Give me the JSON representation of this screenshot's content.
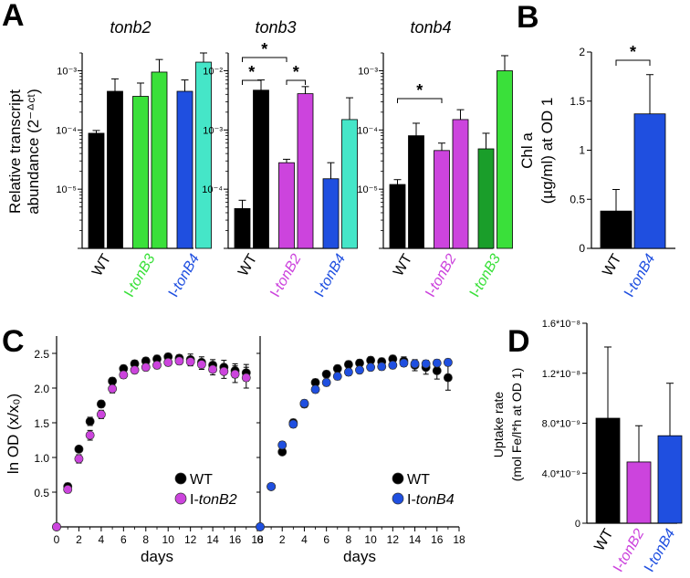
{
  "colors": {
    "WT": "#000000",
    "tonB2": "#cc44dd",
    "tonB3": "#3ae03a",
    "tonB3_dark": "#1a9e2a",
    "tonB4": "#1f4fe0",
    "teal": "#45e6c8"
  },
  "chart_data": [
    {
      "panel": "A",
      "type": "bar",
      "title": "tonb2",
      "yscale": "log",
      "ylim": [
        1e-06,
        0.002
      ],
      "yticks": [
        "10⁻³",
        "10⁻⁴",
        "10⁻⁵"
      ],
      "ylabel": "Relative transcript abundance (2⁻ᐞᶜᵗ)",
      "categories": [
        {
          "label": "WT",
          "color_key": "WT",
          "italic_prefix": "",
          "italic": ""
        },
        {
          "label": "I-tonB3",
          "prefix": "I-",
          "italic": "tonB3",
          "color_key": "tonB3"
        },
        {
          "label": "I-tonB4",
          "prefix": "I-",
          "italic": "tonB4",
          "color_key": "tonB4"
        }
      ],
      "bars": [
        {
          "value": 8.8e-05,
          "err": 1e-05,
          "color_key": "WT"
        },
        {
          "value": 0.00045,
          "err": 0.00028,
          "color_key": "WT"
        },
        {
          "value": 0.00037,
          "err": 0.00025,
          "color_key": "tonB3"
        },
        {
          "value": 0.00095,
          "err": 0.0006,
          "color_key": "tonB3"
        },
        {
          "value": 0.00045,
          "err": 0.00025,
          "color_key": "tonB4"
        },
        {
          "value": 0.0014,
          "err": 0.0006,
          "color_key": "teal"
        }
      ],
      "significance": []
    },
    {
      "panel": "A",
      "type": "bar",
      "title": "tonb3",
      "yscale": "log",
      "ylim": [
        1e-05,
        0.02
      ],
      "yticks": [
        "10⁻²",
        "10⁻³",
        "10⁻⁴"
      ],
      "categories": [
        {
          "label": "WT",
          "color_key": "WT"
        },
        {
          "label": "I-tonB2",
          "prefix": "I-",
          "italic": "tonB2",
          "color_key": "tonB2"
        },
        {
          "label": "I-tonB4",
          "prefix": "I-",
          "italic": "tonB4",
          "color_key": "tonB4"
        }
      ],
      "bars": [
        {
          "value": 4.7e-05,
          "err": 1.8e-05,
          "color_key": "WT"
        },
        {
          "value": 0.0047,
          "err": 0.0023,
          "color_key": "WT"
        },
        {
          "value": 0.00028,
          "err": 4e-05,
          "color_key": "tonB2"
        },
        {
          "value": 0.0041,
          "err": 0.0013,
          "color_key": "tonB2"
        },
        {
          "value": 0.00015,
          "err": 0.00013,
          "color_key": "tonB4"
        },
        {
          "value": 0.0015,
          "err": 0.002,
          "color_key": "teal"
        }
      ],
      "significance": [
        {
          "label": "*",
          "from": 0,
          "to": 1
        },
        {
          "label": "*",
          "from": 0,
          "to": 2
        },
        {
          "label": "*",
          "from": 2,
          "to": 3
        }
      ]
    },
    {
      "panel": "A",
      "type": "bar",
      "title": "tonb4",
      "yscale": "log",
      "ylim": [
        1e-06,
        0.002
      ],
      "yticks": [
        "10⁻³",
        "10⁻⁴",
        "10⁻⁵"
      ],
      "categories": [
        {
          "label": "WT",
          "color_key": "WT"
        },
        {
          "label": "I-tonB2",
          "prefix": "I-",
          "italic": "tonB2",
          "color_key": "tonB2"
        },
        {
          "label": "I-tonB3",
          "prefix": "I-",
          "italic": "tonB3",
          "color_key": "tonB3"
        }
      ],
      "bars": [
        {
          "value": 1.2e-05,
          "err": 2.5e-06,
          "color_key": "WT"
        },
        {
          "value": 8e-05,
          "err": 5e-05,
          "color_key": "WT"
        },
        {
          "value": 4.5e-05,
          "err": 1.5e-05,
          "color_key": "tonB2"
        },
        {
          "value": 0.00015,
          "err": 7e-05,
          "color_key": "tonB2"
        },
        {
          "value": 4.8e-05,
          "err": 4e-05,
          "color_key": "tonB3_dark"
        },
        {
          "value": 0.001,
          "err": 0.0008,
          "color_key": "tonB3"
        }
      ],
      "significance": [
        {
          "label": "*",
          "from": 0,
          "to": 2
        }
      ]
    },
    {
      "panel": "B",
      "type": "bar",
      "title": "",
      "ylabel_line1": "Chl a",
      "ylabel_line2": "(µg/ml) at OD 1",
      "ylim": [
        0,
        2
      ],
      "yticks": [
        "0",
        "0.5",
        "1",
        "1.5",
        "2"
      ],
      "categories": [
        {
          "label": "WT",
          "color_key": "WT"
        },
        {
          "label": "I-tonB4",
          "prefix": "I-",
          "italic": "tonB4",
          "color_key": "tonB4"
        }
      ],
      "bars": [
        {
          "value": 0.38,
          "err": 0.22,
          "color_key": "WT"
        },
        {
          "value": 1.37,
          "err": 0.4,
          "color_key": "tonB4"
        }
      ],
      "significance": [
        {
          "label": "*",
          "from": 0,
          "to": 1
        }
      ]
    },
    {
      "panel": "C",
      "type": "scatter",
      "xlabel": "days",
      "ylabel": "ln OD (x/x₀)",
      "xlim": [
        0,
        18
      ],
      "ylim": [
        0,
        2.75
      ],
      "xticks": [
        "0",
        "2",
        "4",
        "6",
        "8",
        "10",
        "12",
        "14",
        "16",
        "18"
      ],
      "yticks": [
        "0.5",
        "1.0",
        "1.5",
        "2.0",
        "2.5"
      ],
      "x": [
        0,
        1,
        2,
        3,
        4,
        5,
        6,
        7,
        8,
        9,
        10,
        11,
        12,
        13,
        14,
        15,
        16,
        17
      ],
      "series": [
        {
          "name": "WT",
          "color_key": "WT",
          "values": [
            0,
            0.58,
            1.12,
            1.52,
            1.77,
            2.1,
            2.28,
            2.35,
            2.39,
            2.42,
            2.45,
            2.43,
            2.41,
            2.37,
            2.33,
            2.3,
            2.25,
            2.22
          ],
          "err": [
            0,
            0.05,
            0.04,
            0.06,
            0.05,
            0.05,
            0.05,
            0.05,
            0.05,
            0.05,
            0.05,
            0.05,
            0.08,
            0.08,
            0.08,
            0.1,
            0.1,
            0.12
          ]
        },
        {
          "name": "I-tonB2",
          "prefix": "I-",
          "italic": "tonB2",
          "color_key": "tonB2",
          "values": [
            0,
            0.54,
            0.98,
            1.32,
            1.62,
            1.99,
            2.19,
            2.26,
            2.3,
            2.33,
            2.37,
            2.39,
            2.38,
            2.34,
            2.27,
            2.24,
            2.2,
            2.15
          ],
          "err": [
            0,
            0.05,
            0.06,
            0.07,
            0.06,
            0.06,
            0.05,
            0.05,
            0.05,
            0.05,
            0.05,
            0.05,
            0.06,
            0.07,
            0.08,
            0.1,
            0.12,
            0.15
          ]
        }
      ]
    },
    {
      "panel": "C",
      "type": "scatter",
      "xlabel": "days",
      "xlim": [
        0,
        18
      ],
      "ylim": [
        0,
        2.75
      ],
      "xticks": [
        "0",
        "2",
        "4",
        "6",
        "8",
        "10",
        "12",
        "14",
        "16",
        "18"
      ],
      "x": [
        0,
        1,
        2,
        3,
        4,
        5,
        6,
        7,
        8,
        9,
        10,
        11,
        12,
        13,
        14,
        15,
        16,
        17
      ],
      "series": [
        {
          "name": "WT",
          "color_key": "WT",
          "values": [
            0,
            0.58,
            1.08,
            1.5,
            1.77,
            2.08,
            2.2,
            2.28,
            2.34,
            2.36,
            2.4,
            2.38,
            2.42,
            2.39,
            2.33,
            2.3,
            2.25,
            2.15
          ],
          "err": [
            0,
            0.04,
            0.04,
            0.05,
            0.05,
            0.05,
            0.05,
            0.05,
            0.05,
            0.05,
            0.05,
            0.05,
            0.05,
            0.06,
            0.08,
            0.1,
            0.12,
            0.18
          ]
        },
        {
          "name": "I-tonB4",
          "prefix": "I-",
          "italic": "tonB4",
          "color_key": "tonB4",
          "values": [
            0,
            0.58,
            1.18,
            1.48,
            1.78,
            1.98,
            2.08,
            2.17,
            2.23,
            2.26,
            2.3,
            2.31,
            2.33,
            2.36,
            2.35,
            2.35,
            2.36,
            2.37
          ],
          "err": [
            0,
            0.04,
            0.05,
            0.05,
            0.05,
            0.05,
            0.05,
            0.05,
            0.05,
            0.05,
            0.05,
            0.05,
            0.05,
            0.05,
            0.05,
            0.05,
            0.05,
            0.05
          ]
        }
      ]
    },
    {
      "panel": "D",
      "type": "bar",
      "ylabel_line1": "Uptake rate",
      "ylabel_line2": "(mol Fe/l*h at OD 1)",
      "ylim": [
        0,
        1.6e-08
      ],
      "yticks": [
        "0",
        "4.0*10⁻⁹",
        "8.0*10⁻⁹",
        "1.2*10⁻⁸",
        "1.6*10⁻⁸"
      ],
      "categories": [
        {
          "label": "WT",
          "color_key": "WT"
        },
        {
          "label": "I-tonB2",
          "prefix": "I-",
          "italic": "tonB2",
          "color_key": "tonB2"
        },
        {
          "label": "I-tonB4",
          "prefix": "I-",
          "italic": "tonB4",
          "color_key": "tonB4"
        }
      ],
      "bars": [
        {
          "value": 8.4e-09,
          "err": 5.7e-09,
          "color_key": "WT"
        },
        {
          "value": 4.9e-09,
          "err": 2.9e-09,
          "color_key": "tonB2"
        },
        {
          "value": 7e-09,
          "err": 4.2e-09,
          "color_key": "tonB4"
        }
      ],
      "significance": []
    }
  ],
  "labels": {
    "panel_A": "A",
    "panel_B": "B",
    "panel_C": "C",
    "panel_D": "D"
  }
}
